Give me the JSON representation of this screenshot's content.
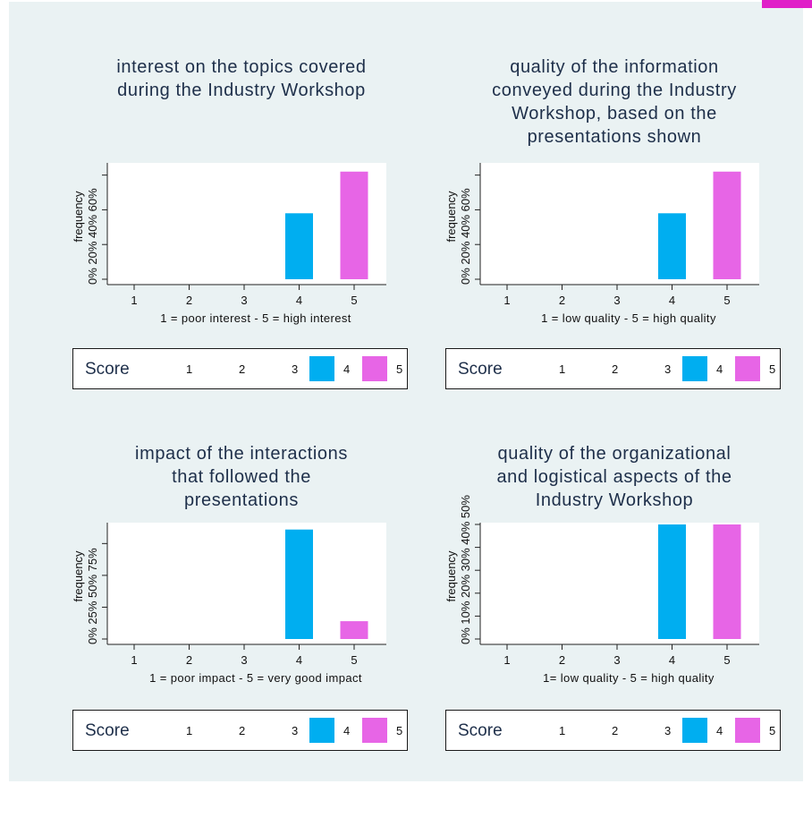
{
  "colors": {
    "background": "#eaf2f3",
    "plot_bg": "#ffffff",
    "score4": "#00aef0",
    "score5": "#e765e6",
    "text": "#1e2f4a"
  },
  "legend": {
    "title": "Score",
    "keys": [
      "1",
      "2",
      "3",
      "4",
      "5"
    ]
  },
  "chart_data": [
    {
      "type": "bar",
      "title_lines": [
        "interest on the topics covered",
        "during the Industry Workshop"
      ],
      "xlabel": "1 = poor interest - 5 = high interest",
      "ylabel": "frequency",
      "categories": [
        "1",
        "2",
        "3",
        "4",
        "5"
      ],
      "values": [
        0,
        0,
        0,
        0.38,
        0.62
      ],
      "ylim": [
        0,
        0.66
      ],
      "yticks": [
        0,
        0.2,
        0.4,
        0.6
      ],
      "ytick_labels": [
        "0%",
        "20%",
        "40%",
        "60%"
      ],
      "grid": false,
      "legend_position": "bottom"
    },
    {
      "type": "bar",
      "title_lines": [
        "quality of the information",
        "conveyed during the Industry",
        "Workshop, based on the",
        "presentations shown"
      ],
      "xlabel": "1 = low quality - 5 = high quality",
      "ylabel": "frequency",
      "categories": [
        "1",
        "2",
        "3",
        "4",
        "5"
      ],
      "values": [
        0,
        0,
        0,
        0.38,
        0.62
      ],
      "ylim": [
        0,
        0.66
      ],
      "yticks": [
        0,
        0.2,
        0.4,
        0.6
      ],
      "ytick_labels": [
        "0%",
        "20%",
        "40%",
        "60%"
      ],
      "grid": false,
      "legend_position": "bottom"
    },
    {
      "type": "bar",
      "title_lines": [
        "impact of the interactions",
        "that followed the",
        "presentations"
      ],
      "xlabel": "1 = poor impact - 5 = very good impact",
      "ylabel": "frequency",
      "categories": [
        "1",
        "2",
        "3",
        "4",
        "5"
      ],
      "values": [
        0,
        0,
        0,
        0.86,
        0.14
      ],
      "ylim": [
        0,
        0.9
      ],
      "yticks": [
        0,
        0.25,
        0.5,
        0.75
      ],
      "ytick_labels": [
        "0%",
        "25%",
        "50%",
        "75%"
      ],
      "grid": false,
      "legend_position": "bottom"
    },
    {
      "type": "bar",
      "title_lines": [
        "quality of the organizational",
        "and logistical aspects of the",
        "Industry Workshop"
      ],
      "xlabel": "1= low quality - 5 = high quality",
      "ylabel": "frequency",
      "categories": [
        "1",
        "2",
        "3",
        "4",
        "5"
      ],
      "values": [
        0,
        0,
        0,
        0.5,
        0.5
      ],
      "ylim": [
        0,
        0.5
      ],
      "yticks": [
        0,
        0.1,
        0.2,
        0.3,
        0.4,
        0.5
      ],
      "ytick_labels": [
        "0%",
        "10%",
        "20%",
        "30%",
        "40%",
        "50%"
      ],
      "grid": false,
      "legend_position": "bottom"
    }
  ]
}
